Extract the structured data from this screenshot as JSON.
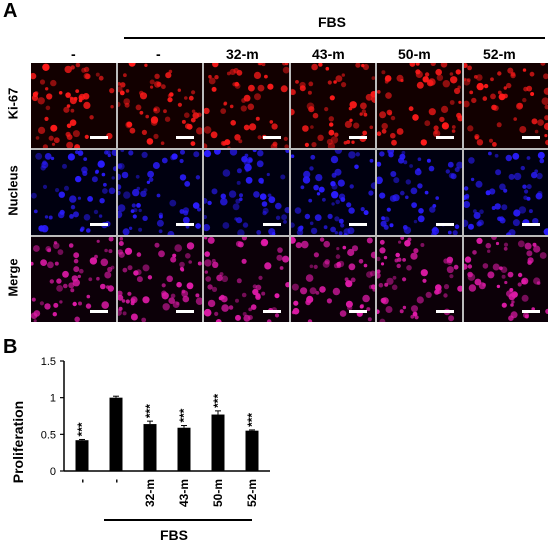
{
  "panel_a": {
    "letter": "A",
    "fbs_label": "FBS",
    "columns": [
      "-",
      "-",
      "32-m",
      "43-m",
      "50-m",
      "52-m"
    ],
    "rows": [
      {
        "label": "Ki-67",
        "color": "#ff1a1a",
        "bg": "#120000"
      },
      {
        "label": "Nucleus",
        "color": "#2a1cff",
        "bg": "#000010"
      },
      {
        "label": "Merge",
        "color": "#e01aa8",
        "bg": "#0c0008"
      }
    ]
  },
  "panel_b": {
    "letter": "B",
    "fbs_label": "FBS"
  },
  "chart_data": {
    "type": "bar",
    "categories": [
      "-",
      "-",
      "32-m",
      "43-m",
      "50-m",
      "52-m"
    ],
    "values": [
      0.42,
      1.0,
      0.64,
      0.59,
      0.77,
      0.55
    ],
    "errors": [
      0.01,
      0.02,
      0.04,
      0.03,
      0.05,
      0.01
    ],
    "significance": [
      "***",
      "",
      "***",
      "***",
      "***",
      "***"
    ],
    "ylabel": "Proliferation",
    "yticks": [
      "0",
      "0.5",
      "1",
      "1.5"
    ],
    "ylim": [
      0,
      1.5
    ],
    "bar_color": "#000000"
  }
}
